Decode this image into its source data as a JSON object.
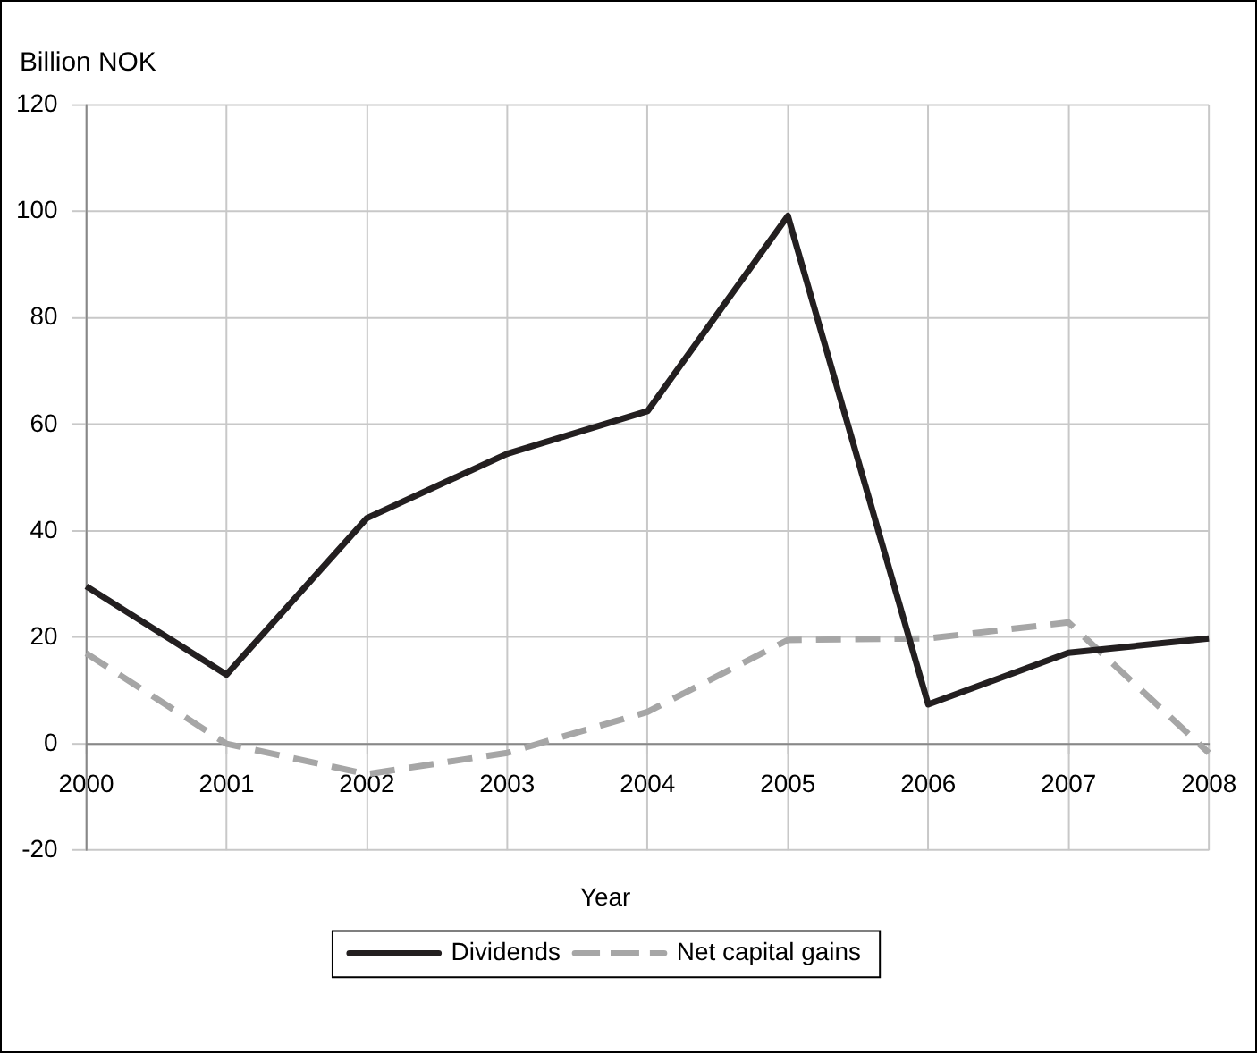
{
  "chart_data": {
    "type": "line",
    "ylabel": "Billion NOK",
    "xlabel": "Year",
    "categories": [
      "2000",
      "2001",
      "2002",
      "2003",
      "2004",
      "2005",
      "2006",
      "2007",
      "2008"
    ],
    "series": [
      {
        "name": "Dividends",
        "color": "#231f20",
        "line_style": "solid",
        "values": [
          29.6,
          13,
          42.4,
          54.5,
          62.5,
          99.2,
          7.4,
          17.1,
          19.8
        ]
      },
      {
        "name": "Net capital gains",
        "color": "#a6a6a6",
        "line_style": "dashed",
        "values": [
          17,
          0,
          -5.7,
          -1.7,
          6,
          19.5,
          19.8,
          22.8,
          -1.7
        ]
      }
    ],
    "ylim": [
      -20,
      120
    ],
    "yticks": [
      -20,
      0,
      20,
      40,
      60,
      80,
      100,
      120
    ],
    "grid": true,
    "legend": "bottom",
    "marker": "none"
  }
}
